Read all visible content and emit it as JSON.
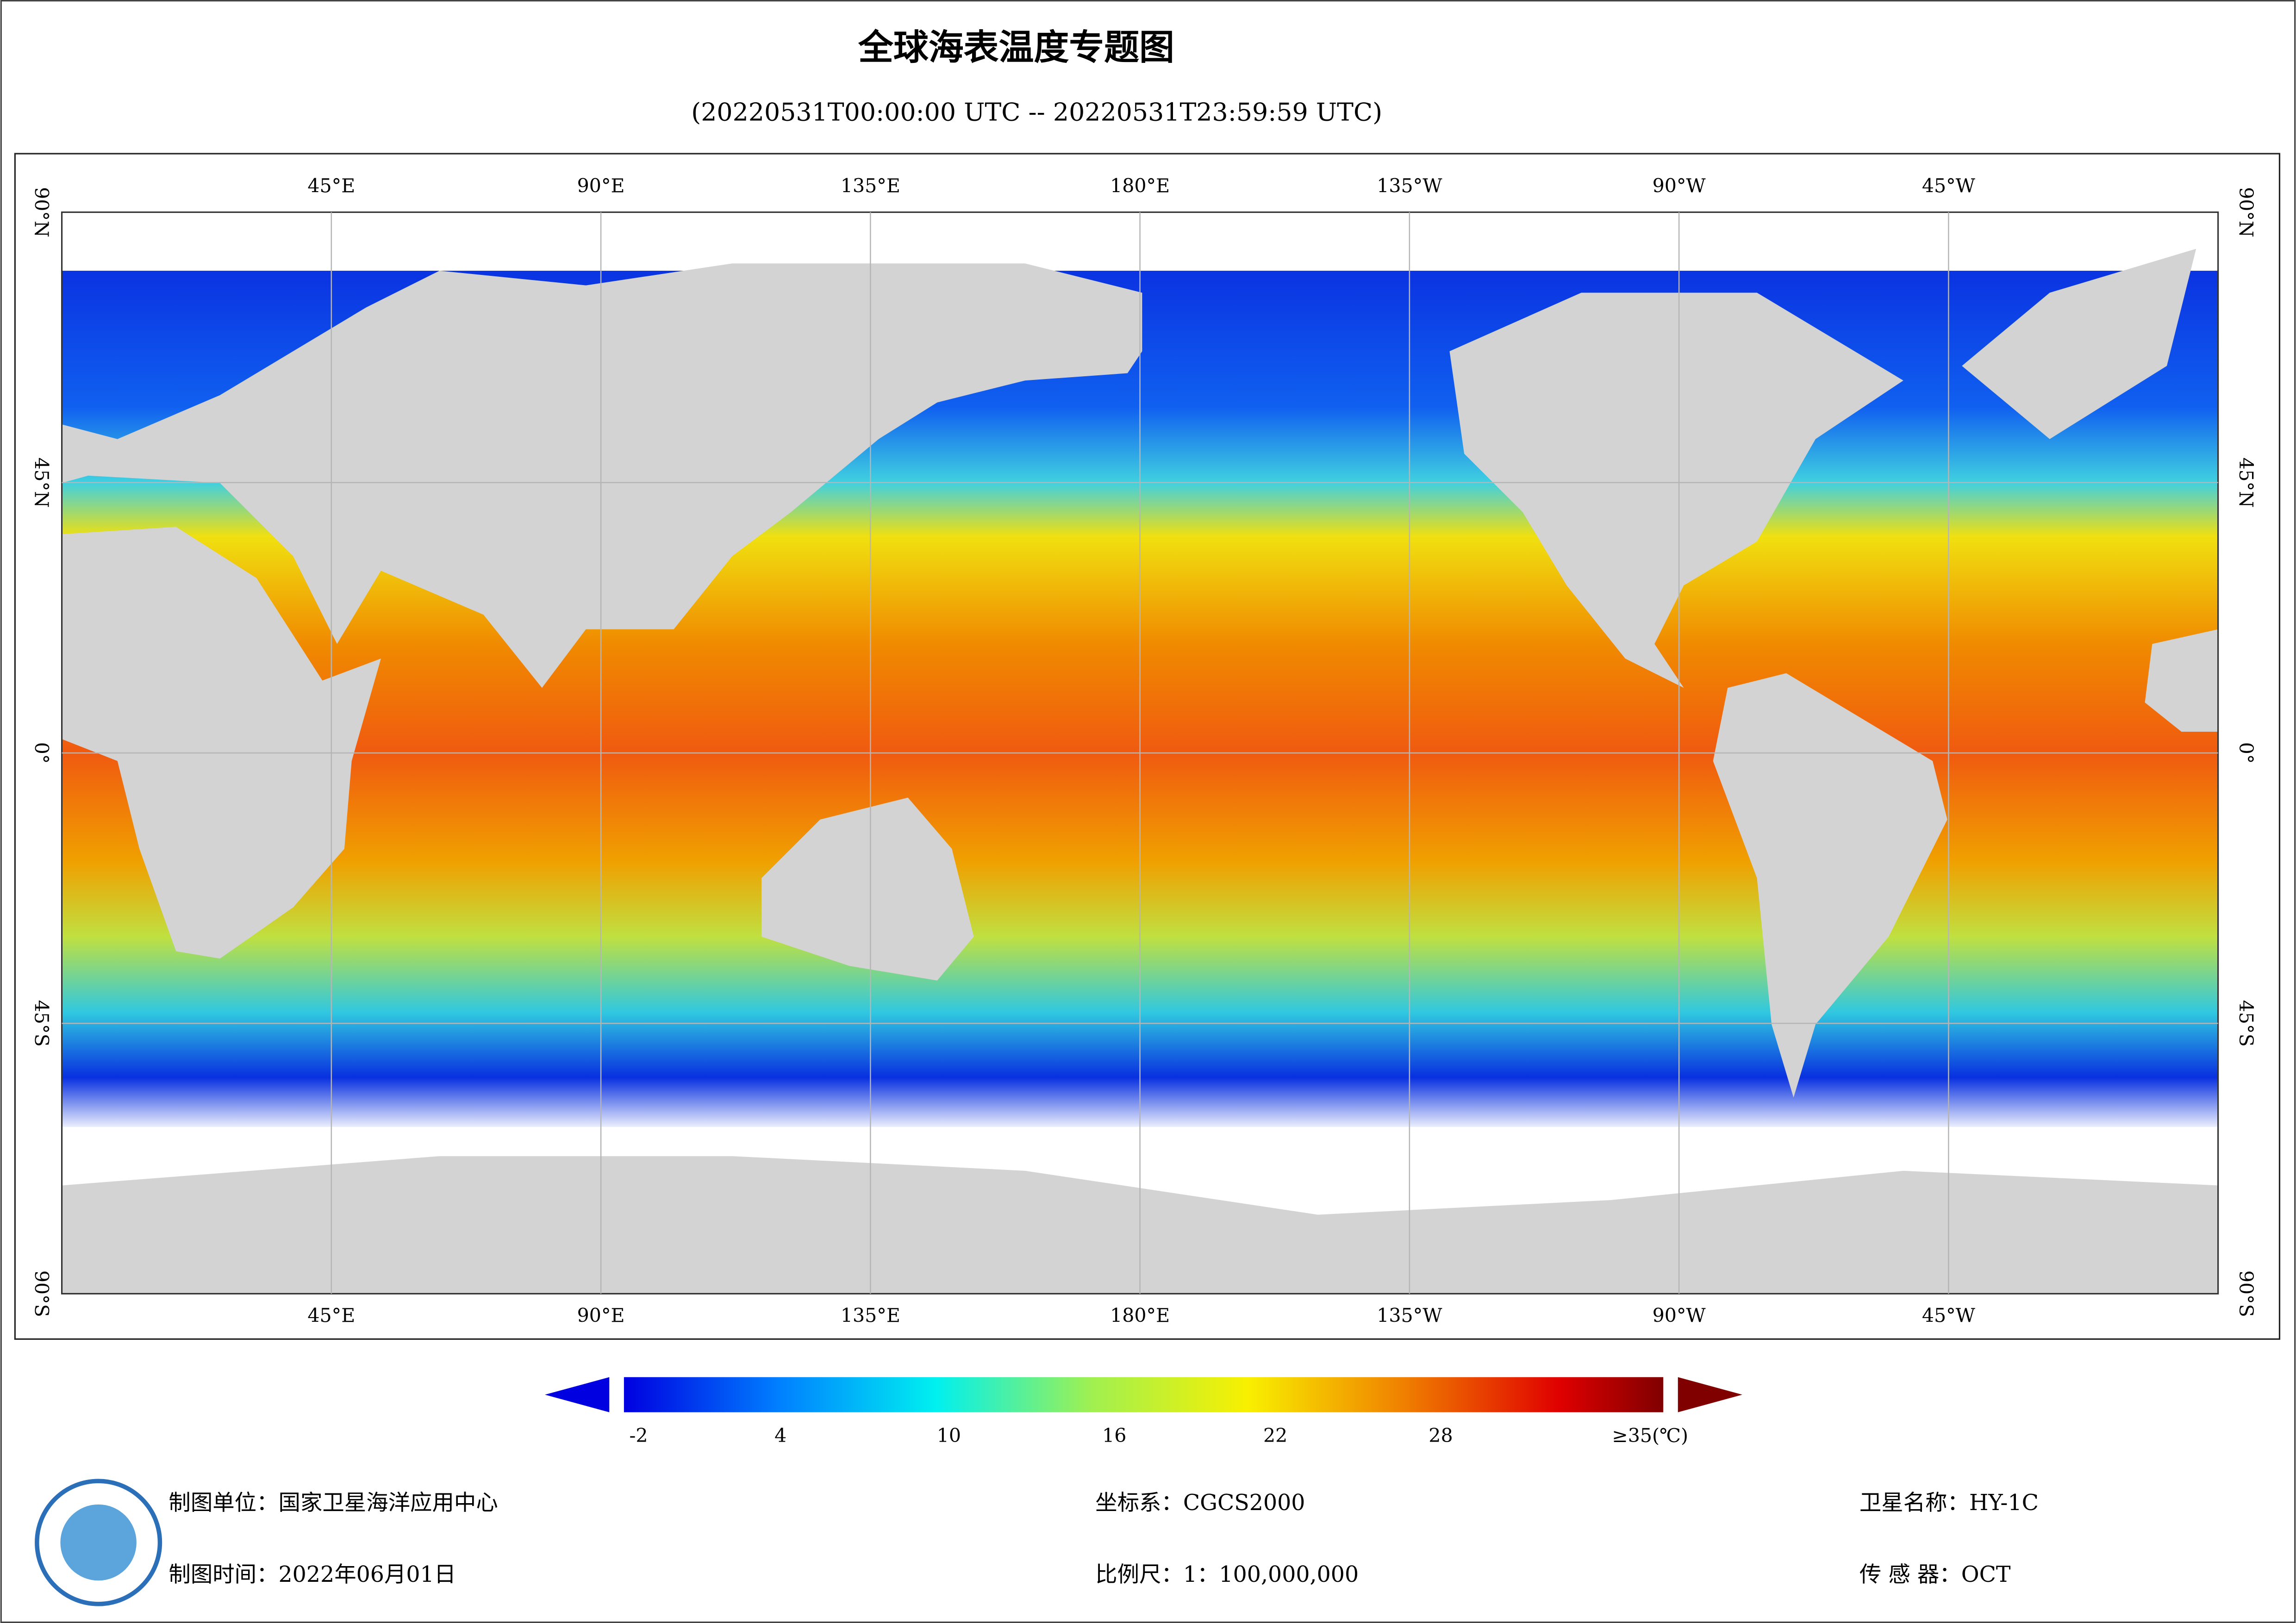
{
  "header": {
    "title": "全球海表温度专题图",
    "subtitle": "(20220531T00:00:00 UTC -- 20220531T23:59:59 UTC)"
  },
  "map": {
    "lon_labels": [
      "45°E",
      "90°E",
      "135°E",
      "180°E",
      "135°W",
      "90°W",
      "45°W"
    ],
    "lat_labels": [
      "90°N",
      "45°N",
      "0°",
      "45°S",
      "90°S"
    ]
  },
  "colorbar": {
    "labels": [
      "-2",
      "4",
      "10",
      "16",
      "22",
      "28",
      "≥35(℃)"
    ]
  },
  "footer": {
    "unit": "制图单位：国家卫星海洋应用中心",
    "crs": "坐标系：CGCS2000",
    "satellite": "卫星名称：HY-1C",
    "date": "制图时间：2022年06月01日",
    "scale": "比例尺：1：100,000,000",
    "sensor": "传 感 器：OCT"
  }
}
